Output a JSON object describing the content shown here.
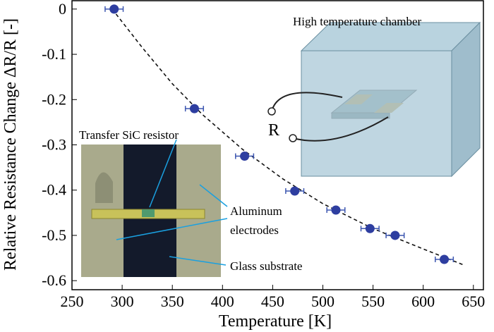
{
  "chart_data": {
    "type": "scatter",
    "x_label": "Temperature [K]",
    "y_label": "Relative Resistance Change ΔR/R [-]",
    "xlim": [
      250,
      660
    ],
    "ylim": [
      -0.62,
      0.02
    ],
    "xticks": [
      250,
      300,
      350,
      400,
      450,
      500,
      550,
      600,
      650
    ],
    "yticks": [
      0,
      -0.1,
      -0.2,
      -0.3,
      -0.4,
      -0.5,
      -0.6
    ],
    "series": [
      {
        "color": "#2e3ea0",
        "error_color": "#3c56b0",
        "x": [
          292,
          372,
          422,
          472,
          513,
          547,
          572,
          621
        ],
        "values": [
          0,
          -0.22,
          -0.325,
          -0.402,
          -0.444,
          -0.485,
          -0.5,
          -0.553
        ],
        "xerr": 9
      }
    ],
    "fit": {
      "color": "#111111",
      "x": [
        290,
        320,
        350,
        380,
        420,
        460,
        500,
        550,
        600,
        640
      ],
      "values": [
        0,
        -0.085,
        -0.165,
        -0.233,
        -0.31,
        -0.375,
        -0.43,
        -0.485,
        -0.53,
        -0.565
      ]
    },
    "annotations": {
      "chamber": "High temperature chamber",
      "resistor_symbol": "R",
      "resistor": "Transfer SiC resistor",
      "electrodes": [
        "Aluminum",
        "electrodes"
      ],
      "substrate": "Glass substrate"
    }
  }
}
